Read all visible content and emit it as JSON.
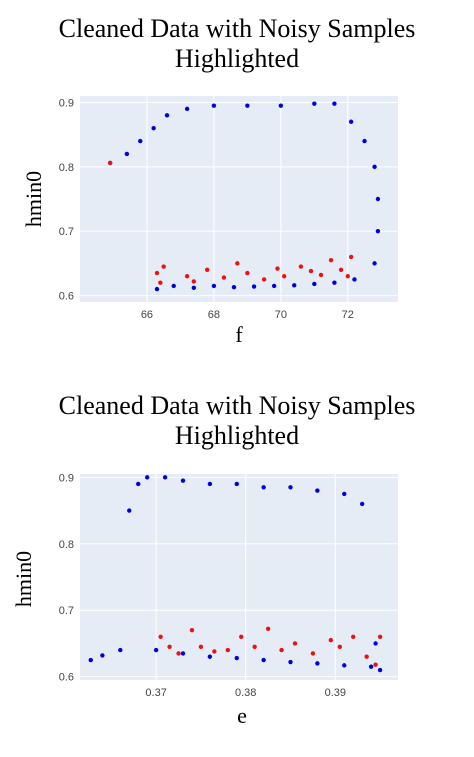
{
  "chart_data": [
    {
      "type": "scatter",
      "title_lines": [
        "Cleaned Data with Noisy Samples",
        "Highlighted"
      ],
      "xlabel": "f",
      "ylabel": "hmin0",
      "xlim": [
        64.0,
        73.5
      ],
      "ylim": [
        0.59,
        0.91
      ],
      "xticks": [
        66,
        68,
        70,
        72
      ],
      "xtick_labels": [
        "66",
        "68",
        "70",
        "72"
      ],
      "yticks": [
        0.6,
        0.7,
        0.8,
        0.9
      ],
      "ytick_labels": [
        "0.6",
        "0.7",
        "0.8",
        "0.9"
      ],
      "grid": true,
      "background": "#e5ecf6",
      "series": [
        {
          "role": "clean",
          "color": "#0000dd",
          "marker": "circle",
          "points": [
            [
              64.9,
              0.806
            ],
            [
              65.4,
              0.82
            ],
            [
              65.8,
              0.84
            ],
            [
              66.2,
              0.86
            ],
            [
              66.6,
              0.88
            ],
            [
              67.2,
              0.89
            ],
            [
              68.0,
              0.895
            ],
            [
              69.0,
              0.895
            ],
            [
              70.0,
              0.895
            ],
            [
              71.0,
              0.898
            ],
            [
              71.6,
              0.898
            ],
            [
              72.1,
              0.87
            ],
            [
              72.5,
              0.84
            ],
            [
              72.8,
              0.8
            ],
            [
              72.9,
              0.75
            ],
            [
              72.9,
              0.7
            ],
            [
              72.8,
              0.65
            ],
            [
              66.3,
              0.61
            ],
            [
              66.8,
              0.615
            ],
            [
              67.4,
              0.612
            ],
            [
              68.0,
              0.615
            ],
            [
              68.6,
              0.613
            ],
            [
              69.2,
              0.614
            ],
            [
              69.8,
              0.615
            ],
            [
              70.4,
              0.616
            ],
            [
              71.0,
              0.618
            ],
            [
              71.6,
              0.62
            ],
            [
              72.2,
              0.625
            ]
          ]
        },
        {
          "role": "noisy",
          "color": "#ee1111",
          "marker": "circle",
          "points": [
            [
              64.9,
              0.806
            ],
            [
              66.3,
              0.635
            ],
            [
              66.4,
              0.62
            ],
            [
              66.5,
              0.645
            ],
            [
              67.2,
              0.63
            ],
            [
              67.4,
              0.622
            ],
            [
              67.8,
              0.64
            ],
            [
              68.3,
              0.628
            ],
            [
              68.7,
              0.65
            ],
            [
              69.0,
              0.635
            ],
            [
              69.5,
              0.625
            ],
            [
              69.9,
              0.642
            ],
            [
              70.1,
              0.63
            ],
            [
              70.6,
              0.645
            ],
            [
              70.9,
              0.638
            ],
            [
              71.2,
              0.632
            ],
            [
              71.5,
              0.655
            ],
            [
              71.8,
              0.64
            ],
            [
              72.0,
              0.63
            ],
            [
              72.1,
              0.66
            ]
          ]
        }
      ]
    },
    {
      "type": "scatter",
      "title_lines": [
        "Cleaned Data with Noisy Samples",
        "Highlighted"
      ],
      "xlabel": "e",
      "ylabel": "hmin0",
      "xlim": [
        0.3615,
        0.397
      ],
      "ylim": [
        0.595,
        0.905
      ],
      "xticks": [
        0.37,
        0.38,
        0.39
      ],
      "xtick_labels": [
        "0.37",
        "0.38",
        "0.39"
      ],
      "yticks": [
        0.6,
        0.7,
        0.8,
        0.9
      ],
      "ytick_labels": [
        "0.6",
        "0.7",
        "0.8",
        "0.9"
      ],
      "grid": true,
      "background": "#e5ecf6",
      "series": [
        {
          "role": "clean",
          "color": "#0000dd",
          "marker": "circle",
          "points": [
            [
              0.3627,
              0.625
            ],
            [
              0.364,
              0.632
            ],
            [
              0.366,
              0.64
            ],
            [
              0.367,
              0.85
            ],
            [
              0.368,
              0.89
            ],
            [
              0.369,
              0.9
            ],
            [
              0.371,
              0.9
            ],
            [
              0.373,
              0.895
            ],
            [
              0.376,
              0.89
            ],
            [
              0.379,
              0.89
            ],
            [
              0.382,
              0.885
            ],
            [
              0.385,
              0.885
            ],
            [
              0.388,
              0.88
            ],
            [
              0.391,
              0.875
            ],
            [
              0.393,
              0.86
            ],
            [
              0.3945,
              0.65
            ],
            [
              0.395,
              0.61
            ],
            [
              0.37,
              0.64
            ],
            [
              0.373,
              0.635
            ],
            [
              0.376,
              0.63
            ],
            [
              0.379,
              0.628
            ],
            [
              0.382,
              0.625
            ],
            [
              0.385,
              0.622
            ],
            [
              0.388,
              0.62
            ],
            [
              0.391,
              0.617
            ],
            [
              0.394,
              0.615
            ]
          ]
        },
        {
          "role": "noisy",
          "color": "#ee1111",
          "marker": "circle",
          "points": [
            [
              0.3705,
              0.66
            ],
            [
              0.3715,
              0.645
            ],
            [
              0.3725,
              0.635
            ],
            [
              0.374,
              0.67
            ],
            [
              0.375,
              0.645
            ],
            [
              0.3765,
              0.638
            ],
            [
              0.378,
              0.64
            ],
            [
              0.3795,
              0.66
            ],
            [
              0.381,
              0.645
            ],
            [
              0.3825,
              0.672
            ],
            [
              0.384,
              0.64
            ],
            [
              0.3855,
              0.65
            ],
            [
              0.3875,
              0.635
            ],
            [
              0.3895,
              0.655
            ],
            [
              0.3905,
              0.645
            ],
            [
              0.392,
              0.66
            ],
            [
              0.3935,
              0.63
            ],
            [
              0.3945,
              0.618
            ],
            [
              0.395,
              0.66
            ]
          ]
        }
      ]
    }
  ]
}
